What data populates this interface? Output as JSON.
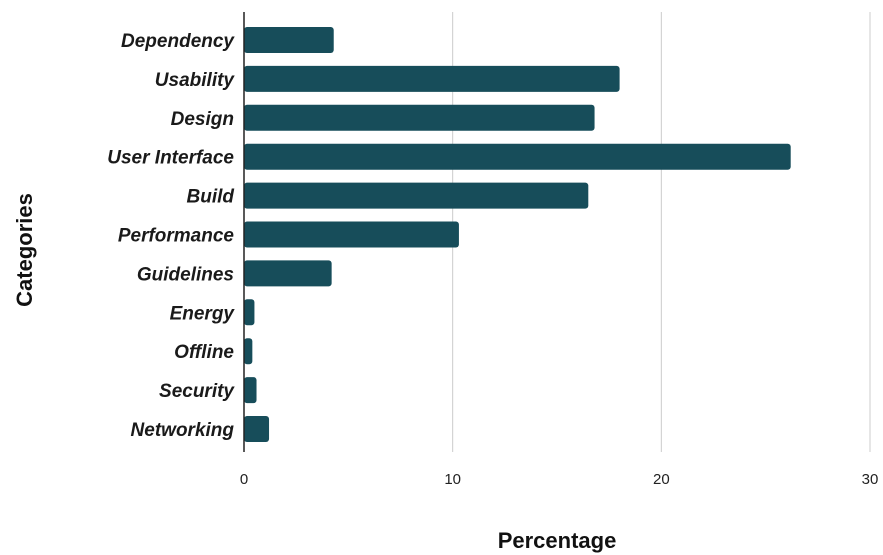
{
  "chart_data": {
    "type": "bar",
    "orientation": "horizontal",
    "title": "",
    "xlabel": "Percentage",
    "ylabel": "Categories",
    "categories": [
      "Dependency",
      "Usability",
      "Design",
      "User Interface",
      "Build",
      "Performance",
      "Guidelines",
      "Energy",
      "Offline",
      "Security",
      "Networking"
    ],
    "values": [
      4.3,
      18.0,
      16.8,
      26.2,
      16.5,
      10.3,
      4.2,
      0.5,
      0.4,
      0.6,
      1.2
    ],
    "xlim": [
      0,
      30
    ],
    "xticks": [
      "0",
      "10",
      "20",
      "30"
    ],
    "grid": true,
    "legend": "none",
    "colors": {
      "bar": "#174d5a",
      "grid": "#cccccc",
      "axis": "#222222"
    }
  }
}
